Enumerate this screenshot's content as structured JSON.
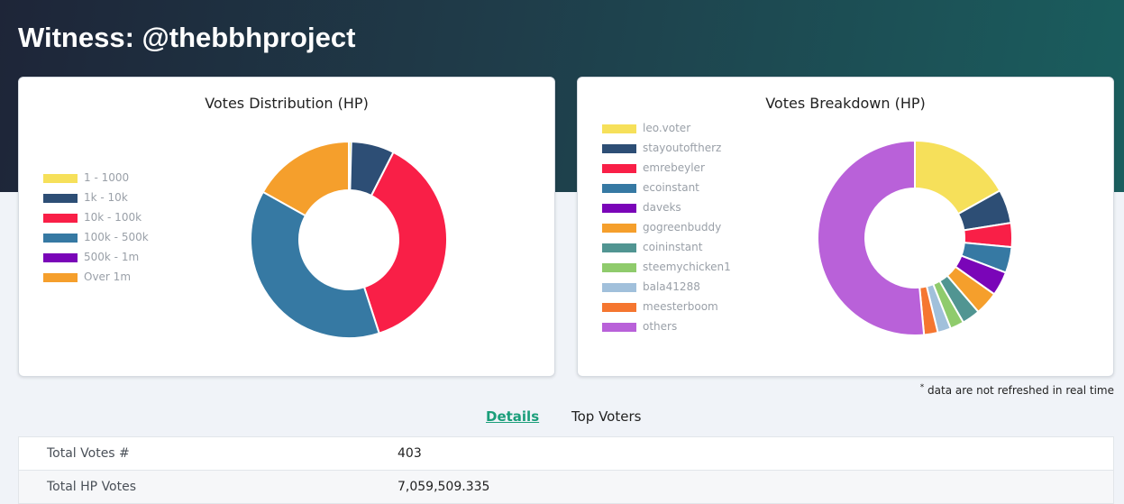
{
  "header": {
    "title": "Witness: @thebbhproject"
  },
  "votes_distribution": {
    "title": "Votes Distribution (HP)",
    "legend": [
      {
        "label": "1 - 1000",
        "color": "#f6e05a"
      },
      {
        "label": "1k - 10k",
        "color": "#2d4e75"
      },
      {
        "label": "10k - 100k",
        "color": "#f91f47"
      },
      {
        "label": "100k - 500k",
        "color": "#3679a3"
      },
      {
        "label": "500k - 1m",
        "color": "#7a05b8"
      },
      {
        "label": "Over 1m",
        "color": "#f59f2c"
      }
    ],
    "slices": [
      {
        "label": "1 - 1000",
        "share": 0.004
      },
      {
        "label": "1k - 10k",
        "share": 0.071
      },
      {
        "label": "10k - 100k",
        "share": 0.375
      },
      {
        "label": "100k - 500k",
        "share": 0.381
      },
      {
        "label": "500k - 1m",
        "share": 0.0
      },
      {
        "label": "Over 1m",
        "share": 0.169
      }
    ]
  },
  "votes_breakdown": {
    "title": "Votes Breakdown (HP)",
    "legend": [
      {
        "label": "leo.voter",
        "color": "#f6e05a"
      },
      {
        "label": "stayoutoftherz",
        "color": "#2d4e75"
      },
      {
        "label": "emrebeyler",
        "color": "#f91f47"
      },
      {
        "label": "ecoinstant",
        "color": "#3679a3"
      },
      {
        "label": "daveks",
        "color": "#7a05b8"
      },
      {
        "label": "gogreenbuddy",
        "color": "#f59f2c"
      },
      {
        "label": "coininstant",
        "color": "#519592"
      },
      {
        "label": "steemychicken1",
        "color": "#8fcb6c"
      },
      {
        "label": "bala41288",
        "color": "#a1c0db"
      },
      {
        "label": "meesterboom",
        "color": "#f57630"
      },
      {
        "label": "others",
        "color": "#b961d9"
      }
    ],
    "slices": [
      {
        "label": "leo.voter",
        "share": 0.169
      },
      {
        "label": "stayoutoftherz",
        "share": 0.056
      },
      {
        "label": "emrebeyler",
        "share": 0.04
      },
      {
        "label": "ecoinstant",
        "share": 0.043
      },
      {
        "label": "daveks",
        "share": 0.04
      },
      {
        "label": "gogreenbuddy",
        "share": 0.039
      },
      {
        "label": "coininstant",
        "share": 0.03
      },
      {
        "label": "steemychicken1",
        "share": 0.023
      },
      {
        "label": "bala41288",
        "share": 0.022
      },
      {
        "label": "meesterboom",
        "share": 0.023
      },
      {
        "label": "others",
        "share": 0.515
      }
    ]
  },
  "footnote": {
    "mark": "*",
    "text": " data are not refreshed in real time"
  },
  "tabs": [
    {
      "label": "Details",
      "active": true
    },
    {
      "label": "Top Voters",
      "active": false
    }
  ],
  "details": [
    {
      "label": "Total Votes #",
      "value": "403"
    },
    {
      "label": "Total HP Votes",
      "value": "7,059,509.335"
    }
  ]
}
